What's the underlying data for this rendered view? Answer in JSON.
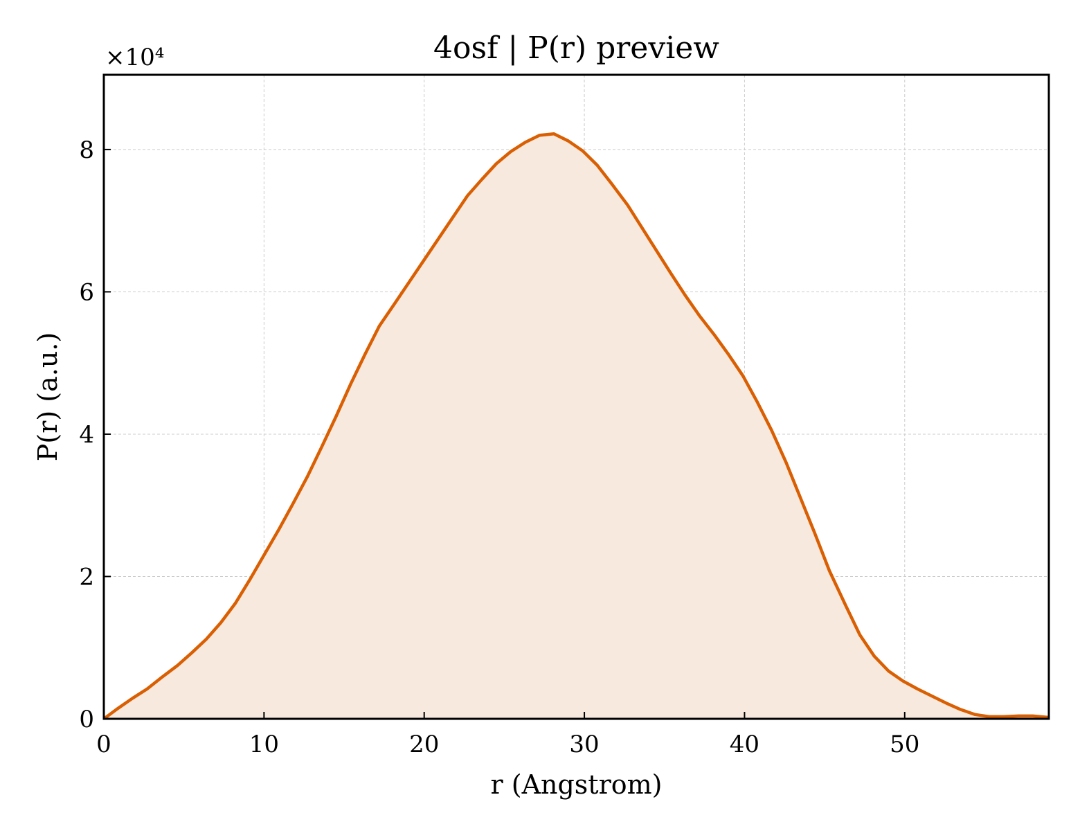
{
  "chart_data": {
    "type": "area",
    "title": "4osf | P(r) preview",
    "xlabel": "r (Angstrom)",
    "ylabel": "P(r) (a.u.)",
    "y_multiplier_label": "×10⁴",
    "y_scale": 10000,
    "xlim": [
      0,
      59
    ],
    "ylim": [
      0,
      9.05
    ],
    "xticks": [
      0,
      10,
      20,
      30,
      40,
      50
    ],
    "yticks": [
      0,
      2,
      4,
      6,
      8
    ],
    "grid": true,
    "legend": "none",
    "colors": {
      "line": "#d95f02",
      "fill": "#f8e9de",
      "grid": "#cccccc",
      "axes": "#000000"
    },
    "series": [
      {
        "x": [
          0,
          0.9,
          1.8,
          2.7,
          3.6,
          4.6,
          5.5,
          6.4,
          7.3,
          8.2,
          9.1,
          10.0,
          10.9,
          11.8,
          12.7,
          13.6,
          14.5,
          15.4,
          16.3,
          17.2,
          18.2,
          19.1,
          20.0,
          20.9,
          21.8,
          22.7,
          23.6,
          24.5,
          25.4,
          26.3,
          27.2,
          28.1,
          29.0,
          29.9,
          30.8,
          31.7,
          32.7,
          33.6,
          34.5,
          35.4,
          36.3,
          37.2,
          38.1,
          39.0,
          39.9,
          40.8,
          41.7,
          42.6,
          43.5,
          44.4,
          45.3,
          46.3,
          47.2,
          48.1,
          49.0,
          49.9,
          50.8,
          51.7,
          52.6,
          53.5,
          54.4,
          55.3,
          56.2,
          57.1,
          58.0,
          59.0
        ],
        "y": [
          0,
          0.15,
          0.29,
          0.42,
          0.58,
          0.75,
          0.93,
          1.12,
          1.35,
          1.62,
          1.95,
          2.3,
          2.65,
          3.02,
          3.4,
          3.82,
          4.25,
          4.7,
          5.12,
          5.52,
          5.85,
          6.15,
          6.45,
          6.75,
          7.05,
          7.35,
          7.58,
          7.8,
          7.97,
          8.1,
          8.2,
          8.22,
          8.12,
          7.98,
          7.78,
          7.52,
          7.22,
          6.9,
          6.58,
          6.26,
          5.95,
          5.66,
          5.4,
          5.12,
          4.82,
          4.45,
          4.05,
          3.6,
          3.1,
          2.6,
          2.08,
          1.6,
          1.18,
          0.88,
          0.67,
          0.53,
          0.42,
          0.32,
          0.22,
          0.13,
          0.06,
          0.03,
          0.03,
          0.04,
          0.04,
          0.02
        ]
      }
    ]
  }
}
